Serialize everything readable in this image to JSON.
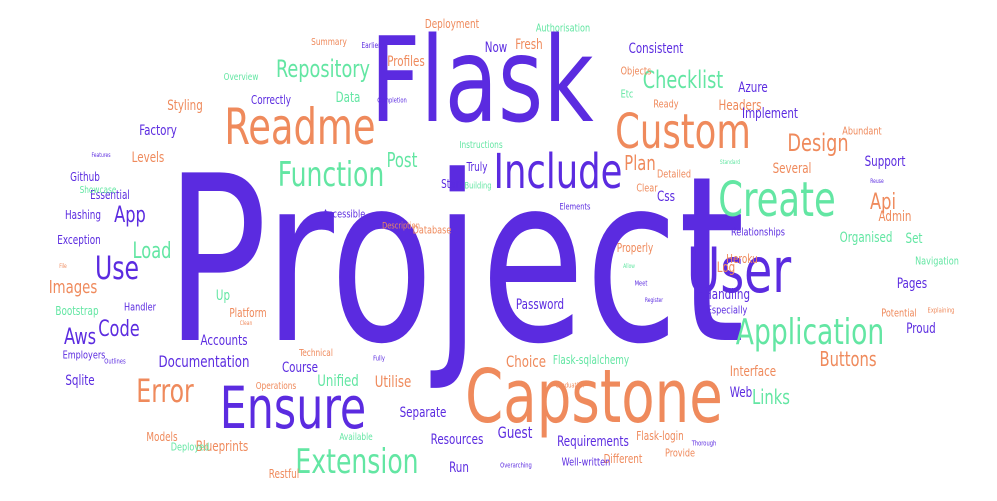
{
  "palette": {
    "purple": "#5b2be0",
    "orange": "#ef8a5c",
    "green": "#63e6a3"
  },
  "words": [
    {
      "text": "Project",
      "color": "purple",
      "weight": 230
    },
    {
      "text": "Flask",
      "color": "purple",
      "weight": 118
    },
    {
      "text": "Capstone",
      "color": "orange",
      "weight": 74
    },
    {
      "text": "Ensure",
      "color": "purple",
      "weight": 58
    },
    {
      "text": "User",
      "color": "purple",
      "weight": 62
    },
    {
      "text": "Readme",
      "color": "orange",
      "weight": 50
    },
    {
      "text": "Custom",
      "color": "orange",
      "weight": 48
    },
    {
      "text": "Include",
      "color": "purple",
      "weight": 48
    },
    {
      "text": "Create",
      "color": "green",
      "weight": 48
    },
    {
      "text": "Function",
      "color": "green",
      "weight": 34
    },
    {
      "text": "Application",
      "color": "green",
      "weight": 36
    },
    {
      "text": "Extension",
      "color": "green",
      "weight": 34
    },
    {
      "text": "Error",
      "color": "orange",
      "weight": 32
    },
    {
      "text": "Use",
      "color": "purple",
      "weight": 32
    },
    {
      "text": "Repository",
      "color": "green",
      "weight": 24
    },
    {
      "text": "Checklist",
      "color": "green",
      "weight": 24
    },
    {
      "text": "Design",
      "color": "orange",
      "weight": 24
    },
    {
      "text": "Buttons",
      "color": "orange",
      "weight": 20
    },
    {
      "text": "Links",
      "color": "green",
      "weight": 20
    },
    {
      "text": "Post",
      "color": "green",
      "weight": 20
    },
    {
      "text": "Plan",
      "color": "orange",
      "weight": 20
    },
    {
      "text": "Code",
      "color": "purple",
      "weight": 22
    },
    {
      "text": "Aws",
      "color": "purple",
      "weight": 22
    },
    {
      "text": "App",
      "color": "purple",
      "weight": 22
    },
    {
      "text": "Load",
      "color": "green",
      "weight": 22
    },
    {
      "text": "Api",
      "color": "orange",
      "weight": 22
    },
    {
      "text": "Images",
      "color": "orange",
      "weight": 18
    },
    {
      "text": "Documentation",
      "color": "purple",
      "weight": 16
    },
    {
      "text": "Unified",
      "color": "green",
      "weight": 16
    },
    {
      "text": "Choice",
      "color": "orange",
      "weight": 16
    },
    {
      "text": "Guest",
      "color": "purple",
      "weight": 16
    },
    {
      "text": "Resources",
      "color": "purple",
      "weight": 14
    },
    {
      "text": "Requirements",
      "color": "purple",
      "weight": 14
    },
    {
      "text": "Blueprints",
      "color": "orange",
      "weight": 14
    },
    {
      "text": "Separate",
      "color": "purple",
      "weight": 14
    },
    {
      "text": "Interface",
      "color": "orange",
      "weight": 14
    },
    {
      "text": "Web",
      "color": "purple",
      "weight": 14
    },
    {
      "text": "Course",
      "color": "purple",
      "weight": 14
    },
    {
      "text": "Utilise",
      "color": "orange",
      "weight": 16
    },
    {
      "text": "Accounts",
      "color": "purple",
      "weight": 14
    },
    {
      "text": "Platform",
      "color": "orange",
      "weight": 12
    },
    {
      "text": "Handling",
      "color": "purple",
      "weight": 14
    },
    {
      "text": "Password",
      "color": "purple",
      "weight": 14
    },
    {
      "text": "Log",
      "color": "orange",
      "weight": 14
    },
    {
      "text": "Heroku",
      "color": "orange",
      "weight": 12
    },
    {
      "text": "Organised",
      "color": "green",
      "weight": 14
    },
    {
      "text": "Admin",
      "color": "orange",
      "weight": 14
    },
    {
      "text": "Set",
      "color": "green",
      "weight": 14
    },
    {
      "text": "Pages",
      "color": "purple",
      "weight": 14
    },
    {
      "text": "Proud",
      "color": "purple",
      "weight": 14
    },
    {
      "text": "Support",
      "color": "purple",
      "weight": 14
    },
    {
      "text": "Several",
      "color": "orange",
      "weight": 14
    },
    {
      "text": "Headers",
      "color": "orange",
      "weight": 14
    },
    {
      "text": "Implement",
      "color": "purple",
      "weight": 14
    },
    {
      "text": "Azure",
      "color": "purple",
      "weight": 14
    },
    {
      "text": "Consistent",
      "color": "purple",
      "weight": 14
    },
    {
      "text": "Profiles",
      "color": "orange",
      "weight": 14
    },
    {
      "text": "Now",
      "color": "purple",
      "weight": 14
    },
    {
      "text": "Fresh",
      "color": "orange",
      "weight": 14
    },
    {
      "text": "Deployment",
      "color": "orange",
      "weight": 12
    },
    {
      "text": "Authorisation",
      "color": "green",
      "weight": 11
    },
    {
      "text": "Data",
      "color": "green",
      "weight": 14
    },
    {
      "text": "Correctly",
      "color": "purple",
      "weight": 12
    },
    {
      "text": "Styling",
      "color": "orange",
      "weight": 14
    },
    {
      "text": "Factory",
      "color": "purple",
      "weight": 14
    },
    {
      "text": "Levels",
      "color": "orange",
      "weight": 14
    },
    {
      "text": "Github",
      "color": "purple",
      "weight": 12
    },
    {
      "text": "Essential",
      "color": "purple",
      "weight": 12
    },
    {
      "text": "Hashing",
      "color": "purple",
      "weight": 12
    },
    {
      "text": "Exception",
      "color": "purple",
      "weight": 12
    },
    {
      "text": "Bootstrap",
      "color": "green",
      "weight": 12
    },
    {
      "text": "Handler",
      "color": "purple",
      "weight": 11
    },
    {
      "text": "Sqlite",
      "color": "purple",
      "weight": 14
    },
    {
      "text": "Employers",
      "color": "purple",
      "weight": 11
    },
    {
      "text": "Models",
      "color": "orange",
      "weight": 12
    },
    {
      "text": "Deployed",
      "color": "green",
      "weight": 11
    },
    {
      "text": "Restful",
      "color": "orange",
      "weight": 12
    },
    {
      "text": "Run",
      "color": "purple",
      "weight": 14
    },
    {
      "text": "Flask-sqlalchemy",
      "color": "green",
      "weight": 12
    },
    {
      "text": "Flask-login",
      "color": "orange",
      "weight": 12
    },
    {
      "text": "Different",
      "color": "orange",
      "weight": 12
    },
    {
      "text": "Provide",
      "color": "orange",
      "weight": 11
    },
    {
      "text": "Well-written",
      "color": "purple",
      "weight": 11
    },
    {
      "text": "Properly",
      "color": "orange",
      "weight": 12
    },
    {
      "text": "Relationships",
      "color": "purple",
      "weight": 11
    },
    {
      "text": "Navigation",
      "color": "green",
      "weight": 11
    },
    {
      "text": "Potential",
      "color": "orange",
      "weight": 11
    },
    {
      "text": "Especially",
      "color": "purple",
      "weight": 11
    },
    {
      "text": "Truly",
      "color": "purple",
      "weight": 12
    },
    {
      "text": "Start",
      "color": "purple",
      "weight": 12
    },
    {
      "text": "Database",
      "color": "orange",
      "weight": 11
    },
    {
      "text": "Accessible",
      "color": "purple",
      "weight": 11
    },
    {
      "text": "Description",
      "color": "orange",
      "weight": 9
    },
    {
      "text": "Elements",
      "color": "purple",
      "weight": 9
    },
    {
      "text": "Building",
      "color": "green",
      "weight": 9
    },
    {
      "text": "Instructions",
      "color": "green",
      "weight": 10
    },
    {
      "text": "Objects",
      "color": "orange",
      "weight": 11
    },
    {
      "text": "Etc",
      "color": "green",
      "weight": 11
    },
    {
      "text": "Ready",
      "color": "orange",
      "weight": 11
    },
    {
      "text": "Detailed",
      "color": "orange",
      "weight": 11
    },
    {
      "text": "Clear",
      "color": "orange",
      "weight": 11
    },
    {
      "text": "Css",
      "color": "purple",
      "weight": 14
    },
    {
      "text": "Abundant",
      "color": "orange",
      "weight": 11
    },
    {
      "text": "Summary",
      "color": "orange",
      "weight": 10
    },
    {
      "text": "Earlier",
      "color": "purple",
      "weight": 8
    },
    {
      "text": "Overview",
      "color": "green",
      "weight": 10
    },
    {
      "text": "Completion",
      "color": "purple",
      "weight": 7
    },
    {
      "text": "Showcase",
      "color": "green",
      "weight": 10
    },
    {
      "text": "Up",
      "color": "green",
      "weight": 14
    },
    {
      "text": "Technical",
      "color": "orange",
      "weight": 10
    },
    {
      "text": "Operations",
      "color": "orange",
      "weight": 10
    },
    {
      "text": "Available",
      "color": "green",
      "weight": 10
    },
    {
      "text": "Thorough",
      "color": "purple",
      "weight": 7
    },
    {
      "text": "Graduation",
      "color": "orange",
      "weight": 7
    },
    {
      "text": "Overarching",
      "color": "purple",
      "weight": 7
    },
    {
      "text": "Fully",
      "color": "purple",
      "weight": 7
    },
    {
      "text": "Outlines",
      "color": "purple",
      "weight": 7
    },
    {
      "text": "Clean",
      "color": "orange",
      "weight": 6
    },
    {
      "text": "Meet",
      "color": "purple",
      "weight": 7
    },
    {
      "text": "Register",
      "color": "purple",
      "weight": 6
    },
    {
      "text": "Allow",
      "color": "green",
      "weight": 6
    },
    {
      "text": "Reuse",
      "color": "purple",
      "weight": 6
    },
    {
      "text": "Explaining",
      "color": "orange",
      "weight": 7
    },
    {
      "text": "File",
      "color": "orange",
      "weight": 6
    },
    {
      "text": "Features",
      "color": "purple",
      "weight": 6
    },
    {
      "text": "Standard",
      "color": "green",
      "weight": 6
    }
  ]
}
